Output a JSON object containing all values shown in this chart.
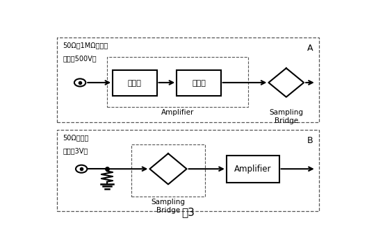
{
  "fig_width": 5.28,
  "fig_height": 3.6,
  "dpi": 100,
  "bg_color": "#ffffff",
  "title": "图3",
  "panel_A_line1": "50Ω或1MΩ输入端",
  "panel_A_line2": "（最大500V）",
  "panel_B_line1": "50Ω输入端",
  "panel_B_line2": "（最大3V）",
  "att1_label": "衰减器",
  "att2_label": "衰减器",
  "amplifier_label_A": "Amplifier",
  "sampling_bridge_label_A": "Sampling\nBridge",
  "sampling_bridge_label_B": "Sampling\nBridge",
  "amplifier_label_B": "Amplifier",
  "label_A": "A",
  "label_B": "B",
  "line_color": "#000000",
  "text_color": "#000000",
  "dashed_color": "#555555"
}
